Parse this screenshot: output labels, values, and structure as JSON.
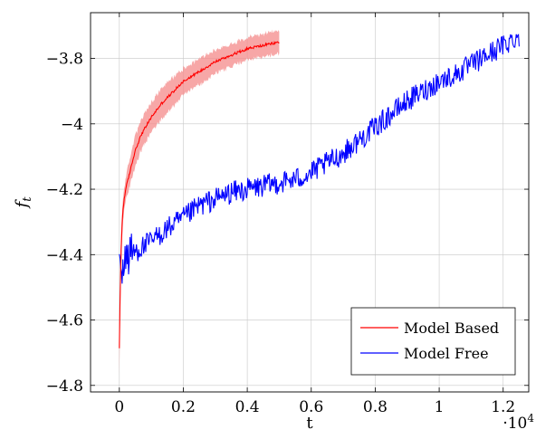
{
  "chart_data": {
    "type": "line",
    "xlabel": "t",
    "ylabel": "f",
    "ylabel_subscript": "t",
    "x_exponent_label": "·10",
    "x_exponent_power": "4",
    "xlim": [
      -0.09,
      1.28
    ],
    "ylim": [
      -4.82,
      -3.66
    ],
    "x_ticks": [
      0,
      0.2,
      0.4,
      0.6,
      0.8,
      1,
      1.2
    ],
    "x_tick_labels": [
      "0",
      "0.2",
      "0.4",
      "0.6",
      "0.8",
      "1",
      "1.2"
    ],
    "y_ticks": [
      -4.8,
      -4.6,
      -4.4,
      -4.2,
      -4,
      -3.8
    ],
    "y_tick_labels": [
      "−4.8",
      "−4.6",
      "−4.4",
      "−4.2",
      "−4",
      "−3.8"
    ],
    "grid": true,
    "legend_position": "bottom-right",
    "series": [
      {
        "name": "Model Based",
        "color": "#ff0000",
        "band_color": "#f48a8a",
        "x": [
          0.0,
          0.002,
          0.005,
          0.01,
          0.015,
          0.02,
          0.03,
          0.04,
          0.05,
          0.07,
          0.1,
          0.13,
          0.16,
          0.2,
          0.25,
          0.3,
          0.35,
          0.4,
          0.45,
          0.5
        ],
        "y": [
          -4.69,
          -4.55,
          -4.4,
          -4.28,
          -4.23,
          -4.2,
          -4.16,
          -4.12,
          -4.08,
          -4.03,
          -3.98,
          -3.94,
          -3.91,
          -3.87,
          -3.84,
          -3.81,
          -3.79,
          -3.77,
          -3.76,
          -3.75
        ],
        "band": [
          0.08,
          0.07,
          0.06,
          0.04,
          0.035,
          0.035,
          0.04,
          0.045,
          0.045,
          0.045,
          0.045,
          0.045,
          0.045,
          0.04,
          0.04,
          0.035,
          0.035,
          0.035,
          0.035,
          0.035
        ]
      },
      {
        "name": "Model Free",
        "color": "#0000ff",
        "x": [
          0.0,
          0.02,
          0.05,
          0.1,
          0.15,
          0.2,
          0.25,
          0.3,
          0.35,
          0.4,
          0.45,
          0.5,
          0.55,
          0.6,
          0.65,
          0.7,
          0.75,
          0.8,
          0.85,
          0.9,
          0.95,
          1.0,
          1.05,
          1.1,
          1.15,
          1.2,
          1.25
        ],
        "y": [
          -4.45,
          -4.41,
          -4.39,
          -4.36,
          -4.32,
          -4.29,
          -4.25,
          -4.23,
          -4.21,
          -4.2,
          -4.19,
          -4.18,
          -4.17,
          -4.15,
          -4.12,
          -4.09,
          -4.05,
          -4.01,
          -3.97,
          -3.93,
          -3.9,
          -3.87,
          -3.85,
          -3.82,
          -3.79,
          -3.76,
          -3.73
        ],
        "noise": 0.035
      }
    ]
  }
}
